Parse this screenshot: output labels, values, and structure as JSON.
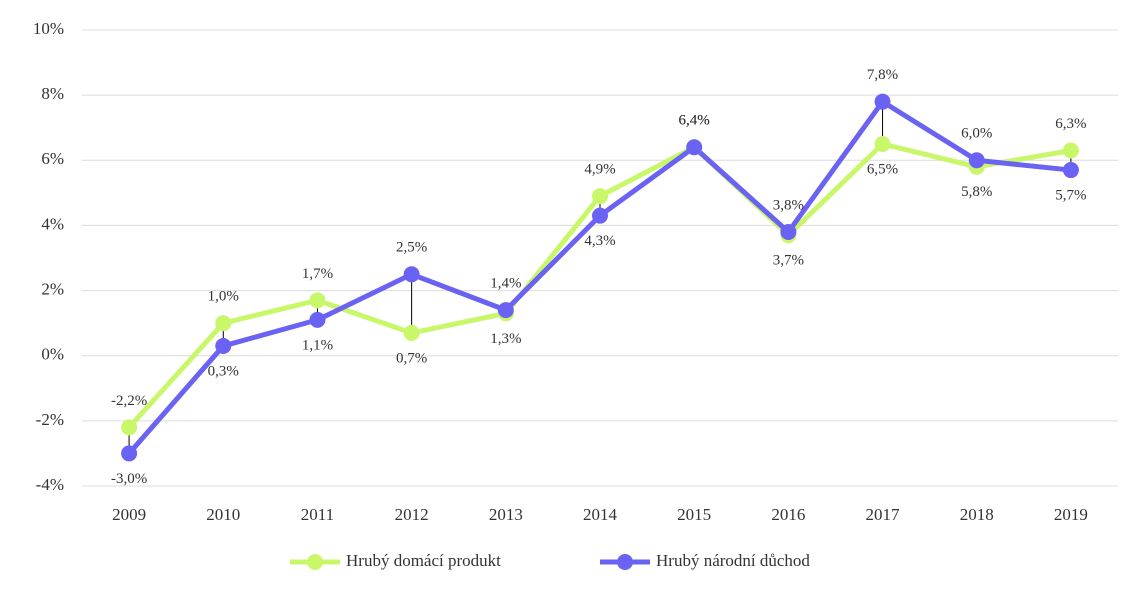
{
  "chart_data": {
    "type": "line",
    "categories": [
      "2009",
      "2010",
      "2011",
      "2012",
      "2013",
      "2014",
      "2015",
      "2016",
      "2017",
      "2018",
      "2019"
    ],
    "series": [
      {
        "name": "Hrubý domácí produkt",
        "color": "#c9f76a",
        "values": [
          -2.2,
          1.0,
          1.7,
          0.7,
          1.3,
          4.9,
          6.4,
          3.7,
          6.5,
          5.8,
          6.3
        ],
        "value_labels": [
          "-2,2%",
          "1,0%",
          "1,7%",
          "0,7%",
          "1,3%",
          "4,9%",
          "6,4%",
          "3,7%",
          "6,5%",
          "5,8%",
          "6,3%"
        ]
      },
      {
        "name": "Hrubý národní důchod",
        "color": "#6a62f2",
        "values": [
          -3.0,
          0.3,
          1.1,
          2.5,
          1.4,
          4.3,
          6.4,
          3.8,
          7.8,
          6.0,
          5.7
        ],
        "value_labels": [
          "-3,0%",
          "0,3%",
          "1,1%",
          "2,5%",
          "1,4%",
          "4,3%",
          "6,4%",
          "3,8%",
          "7,8%",
          "6,0%",
          "5,7%"
        ]
      }
    ],
    "ylim": [
      -4,
      10
    ],
    "yticks": [
      {
        "value": -4,
        "label": "-4%"
      },
      {
        "value": -2,
        "label": "-2%"
      },
      {
        "value": 0,
        "label": "0%"
      },
      {
        "value": 2,
        "label": "2%"
      },
      {
        "value": 4,
        "label": "4%"
      },
      {
        "value": 6,
        "label": "6%"
      },
      {
        "value": 8,
        "label": "8%"
      },
      {
        "value": 10,
        "label": "10%"
      }
    ],
    "grid": true,
    "legend": "bottom"
  }
}
